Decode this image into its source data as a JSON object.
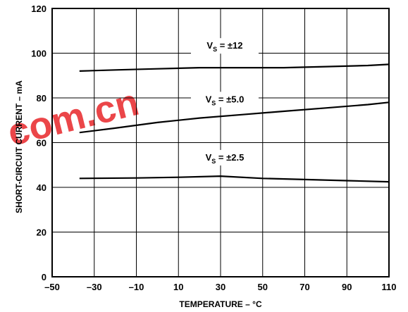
{
  "chart_data": {
    "type": "line",
    "xlabel": "TEMPERATURE – °C",
    "ylabel": "SHORT-CIRCUIT CURRENT – mA",
    "xlim": [
      -50,
      110
    ],
    "ylim": [
      0,
      120
    ],
    "xticks": [
      -50,
      -30,
      -10,
      10,
      30,
      50,
      70,
      90,
      110
    ],
    "yticks": [
      0,
      20,
      40,
      60,
      80,
      100,
      120
    ],
    "xtick_labels": [
      "–50",
      "–30",
      "–10",
      "10",
      "30",
      "50",
      "70",
      "90",
      "110"
    ],
    "ytick_labels": [
      "0",
      "20",
      "40",
      "60",
      "80",
      "100",
      "120"
    ],
    "grid": true,
    "legend": "none",
    "line_color": "#000000",
    "series": [
      {
        "label_main": "V",
        "label_sub": "S",
        "label_rest": " = ±12",
        "x": [
          -37,
          -20,
          0,
          20,
          40,
          60,
          80,
          100,
          110
        ],
        "y": [
          92,
          92.5,
          93,
          93.5,
          93.5,
          93.5,
          94,
          94.5,
          95
        ]
      },
      {
        "label_main": "V",
        "label_sub": "S",
        "label_rest": " = ±5.0",
        "x": [
          -37,
          -20,
          0,
          20,
          40,
          60,
          80,
          100,
          110
        ],
        "y": [
          64.5,
          66.5,
          69,
          71,
          72.5,
          74,
          75.5,
          77,
          78
        ]
      },
      {
        "label_main": "V",
        "label_sub": "S",
        "label_rest": " = ±2.5",
        "x": [
          -37,
          -10,
          10,
          30,
          50,
          70,
          90,
          110
        ],
        "y": [
          44,
          44.2,
          44.5,
          45,
          44,
          43.5,
          43,
          42.5
        ]
      }
    ]
  },
  "watermark": {
    "text": "com.cn",
    "color": "#e8262a"
  }
}
